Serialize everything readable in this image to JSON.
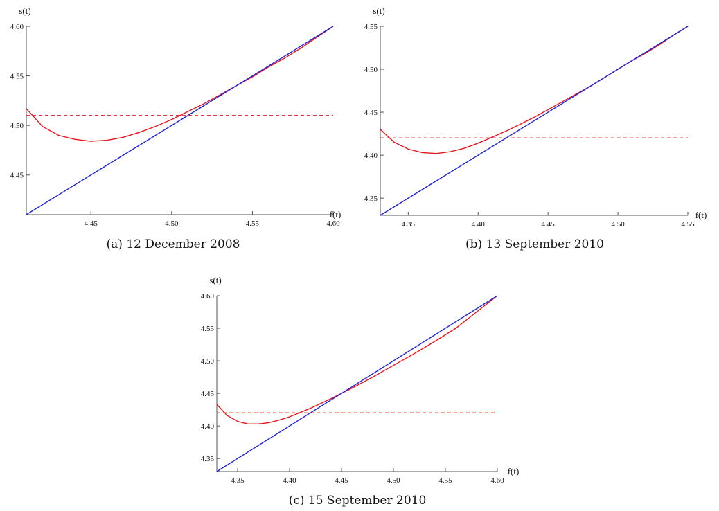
{
  "chart_data": [
    {
      "type": "line",
      "caption": "(a) 12 December 2008",
      "xlabel": "f(t)",
      "ylabel": "s(t)",
      "xlim": [
        4.41,
        4.6
      ],
      "ylim": [
        4.41,
        4.6
      ],
      "xticks": [
        "4.45",
        "4.50",
        "4.55",
        "4.60"
      ],
      "xtick_values": [
        4.45,
        4.5,
        4.55,
        4.6
      ],
      "yticks": [
        "4.45",
        "4.50",
        "4.55",
        "4.60"
      ],
      "ytick_values": [
        4.45,
        4.5,
        4.55,
        4.6
      ],
      "series": [
        {
          "style": "solid",
          "color": "#e8141c",
          "x": [
            4.41,
            4.42,
            4.43,
            4.44,
            4.45,
            4.46,
            4.47,
            4.48,
            4.49,
            4.5,
            4.51,
            4.52,
            4.53,
            4.54,
            4.55,
            4.56,
            4.57,
            4.58,
            4.59,
            4.6
          ],
          "y": [
            4.517,
            4.499,
            4.49,
            4.486,
            4.484,
            4.485,
            4.488,
            4.493,
            4.499,
            4.506,
            4.514,
            4.522,
            4.531,
            4.54,
            4.549,
            4.559,
            4.568,
            4.578,
            4.589,
            4.6
          ]
        },
        {
          "style": "solid",
          "color": "#1f24d6",
          "x": [
            4.41,
            4.6
          ],
          "y": [
            4.41,
            4.6
          ]
        },
        {
          "style": "dashed",
          "color": "#e8141c",
          "x": [
            4.41,
            4.6
          ],
          "y": [
            4.51,
            4.51
          ]
        }
      ]
    },
    {
      "type": "line",
      "caption": "(b) 13 September 2010",
      "xlabel": "f(t)",
      "ylabel": "s(t)",
      "xlim": [
        4.33,
        4.55
      ],
      "ylim": [
        4.33,
        4.55
      ],
      "xticks": [
        "4.35",
        "4.40",
        "4.45",
        "4.50",
        "4.55"
      ],
      "xtick_values": [
        4.35,
        4.4,
        4.45,
        4.5,
        4.55
      ],
      "yticks": [
        "4.35",
        "4.40",
        "4.45",
        "4.50",
        "4.55"
      ],
      "ytick_values": [
        4.35,
        4.4,
        4.45,
        4.5,
        4.55
      ],
      "series": [
        {
          "style": "solid",
          "color": "#e8141c",
          "x": [
            4.33,
            4.34,
            4.35,
            4.36,
            4.37,
            4.38,
            4.39,
            4.4,
            4.41,
            4.42,
            4.43,
            4.44,
            4.45,
            4.46,
            4.47,
            4.48,
            4.49,
            4.5,
            4.51,
            4.52,
            4.53,
            4.54,
            4.55
          ],
          "y": [
            4.43,
            4.415,
            4.407,
            4.403,
            4.402,
            4.404,
            4.408,
            4.414,
            4.421,
            4.428,
            4.436,
            4.444,
            4.453,
            4.462,
            4.471,
            4.48,
            4.49,
            4.5,
            4.51,
            4.519,
            4.529,
            4.54,
            4.55
          ]
        },
        {
          "style": "solid",
          "color": "#1f24d6",
          "x": [
            4.33,
            4.55
          ],
          "y": [
            4.33,
            4.55
          ]
        },
        {
          "style": "dashed",
          "color": "#e8141c",
          "x": [
            4.33,
            4.55
          ],
          "y": [
            4.42,
            4.42
          ]
        }
      ]
    },
    {
      "type": "line",
      "caption": "(c) 15 September 2010",
      "xlabel": "f(t)",
      "ylabel": "s(t)",
      "xlim": [
        4.33,
        4.6
      ],
      "ylim": [
        4.33,
        4.6
      ],
      "xticks": [
        "4.35",
        "4.40",
        "4.45",
        "4.50",
        "4.55",
        "4.60"
      ],
      "xtick_values": [
        4.35,
        4.4,
        4.45,
        4.5,
        4.55,
        4.6
      ],
      "yticks": [
        "4.35",
        "4.40",
        "4.45",
        "4.50",
        "4.55",
        "4.60"
      ],
      "ytick_values": [
        4.35,
        4.4,
        4.45,
        4.5,
        4.55,
        4.6
      ],
      "series": [
        {
          "style": "solid",
          "color": "#e8141c",
          "x": [
            4.33,
            4.34,
            4.35,
            4.36,
            4.37,
            4.38,
            4.39,
            4.4,
            4.42,
            4.44,
            4.46,
            4.48,
            4.5,
            4.52,
            4.54,
            4.56,
            4.58,
            4.6
          ],
          "y": [
            4.433,
            4.416,
            4.407,
            4.403,
            4.403,
            4.405,
            4.409,
            4.414,
            4.427,
            4.442,
            4.458,
            4.475,
            4.493,
            4.511,
            4.53,
            4.55,
            4.575,
            4.6
          ]
        },
        {
          "style": "solid",
          "color": "#1f24d6",
          "x": [
            4.33,
            4.6
          ],
          "y": [
            4.33,
            4.6
          ]
        },
        {
          "style": "dashed",
          "color": "#e8141c",
          "x": [
            4.33,
            4.6
          ],
          "y": [
            4.42,
            4.42
          ]
        }
      ]
    }
  ]
}
